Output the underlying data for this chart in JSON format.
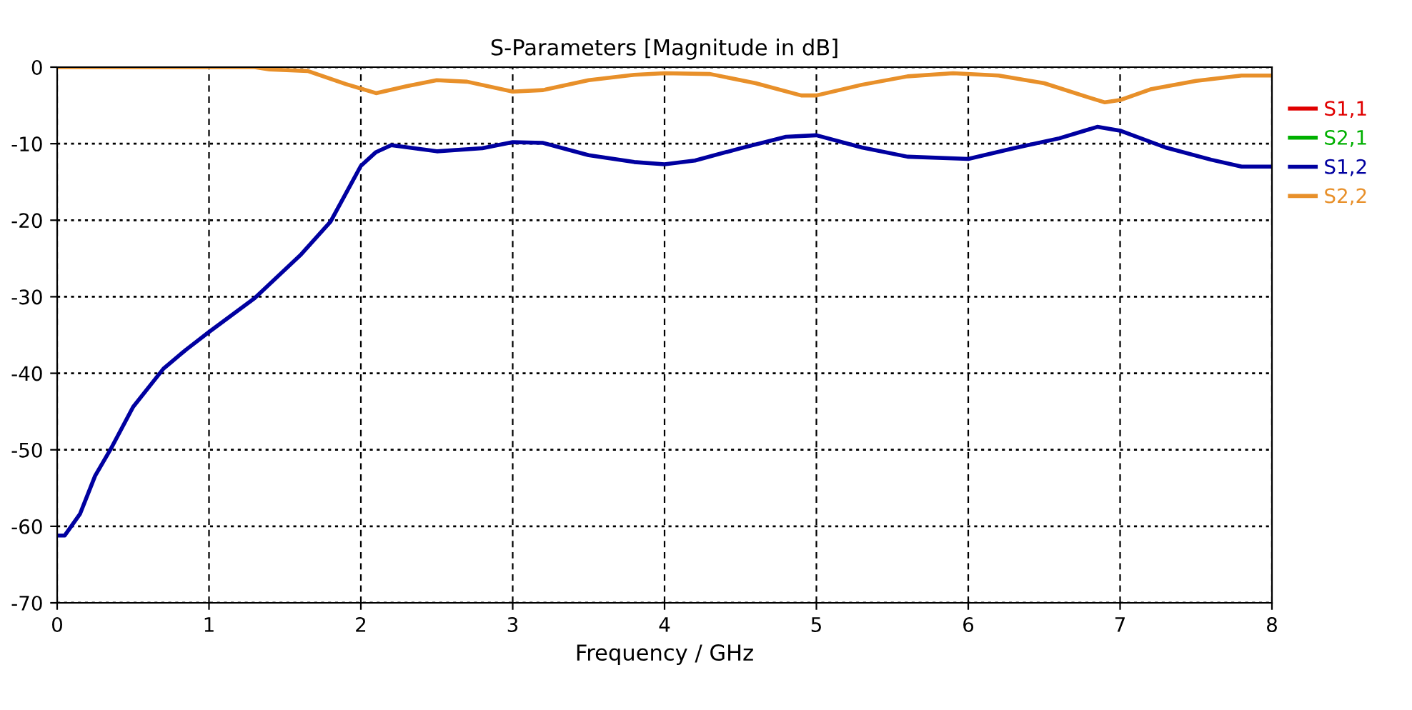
{
  "chart_data": {
    "type": "line",
    "title": "S-Parameters [Magnitude in dB]",
    "xlabel": "Frequency / GHz",
    "xlim": [
      0,
      8
    ],
    "xticks": [
      0,
      1,
      2,
      3,
      4,
      5,
      6,
      7,
      8
    ],
    "ylim": [
      -70,
      0
    ],
    "yticks": [
      -70,
      -60,
      -50,
      -40,
      -30,
      -20,
      -10,
      0
    ],
    "grid": true,
    "legend": "right",
    "line_style": "solid",
    "marker": "none",
    "series": [
      {
        "name": "S1,1",
        "color": "#e00000"
      },
      {
        "name": "S2,1",
        "color": "#00b000"
      },
      {
        "name": "S1,2",
        "color": "#0000a0",
        "x": [
          0,
          0.05,
          0.15,
          0.25,
          0.35,
          0.5,
          0.7,
          0.85,
          1.0,
          1.3,
          1.6,
          1.8,
          2.0,
          2.1,
          2.2,
          2.5,
          2.8,
          3.0,
          3.2,
          3.5,
          3.8,
          4.0,
          4.2,
          4.5,
          4.8,
          5.0,
          5.3,
          5.6,
          6.0,
          6.3,
          6.6,
          6.85,
          7.0,
          7.3,
          7.6,
          7.8,
          8.0
        ],
        "values": [
          -61.2,
          -61.2,
          -58.4,
          -53.4,
          -50.0,
          -44.4,
          -39.4,
          -36.9,
          -34.6,
          -30.2,
          -24.6,
          -20.2,
          -12.9,
          -11.1,
          -10.2,
          -11.0,
          -10.6,
          -9.8,
          -9.9,
          -11.5,
          -12.4,
          -12.7,
          -12.2,
          -10.6,
          -9.1,
          -8.9,
          -10.5,
          -11.7,
          -12.0,
          -10.6,
          -9.3,
          -7.8,
          -8.3,
          -10.5,
          -12.1,
          -13.0,
          -13.0
        ]
      },
      {
        "name": "S2,2",
        "color": "#e8902a",
        "x": [
          0,
          1.3,
          1.4,
          1.65,
          1.9,
          2.1,
          2.3,
          2.5,
          2.7,
          3.0,
          3.2,
          3.5,
          3.8,
          4.0,
          4.3,
          4.6,
          4.9,
          5.0,
          5.3,
          5.6,
          5.9,
          6.2,
          6.5,
          6.8,
          6.9,
          7.0,
          7.2,
          7.5,
          7.8,
          8.0
        ],
        "values": [
          0,
          0,
          -0.3,
          -0.5,
          -2.2,
          -3.4,
          -2.5,
          -1.7,
          -1.9,
          -3.2,
          -3.0,
          -1.7,
          -1.0,
          -0.8,
          -0.9,
          -2.1,
          -3.7,
          -3.7,
          -2.3,
          -1.2,
          -0.8,
          -1.1,
          -2.1,
          -4.0,
          -4.6,
          -4.3,
          -2.9,
          -1.8,
          -1.1,
          -1.1
        ]
      }
    ]
  }
}
